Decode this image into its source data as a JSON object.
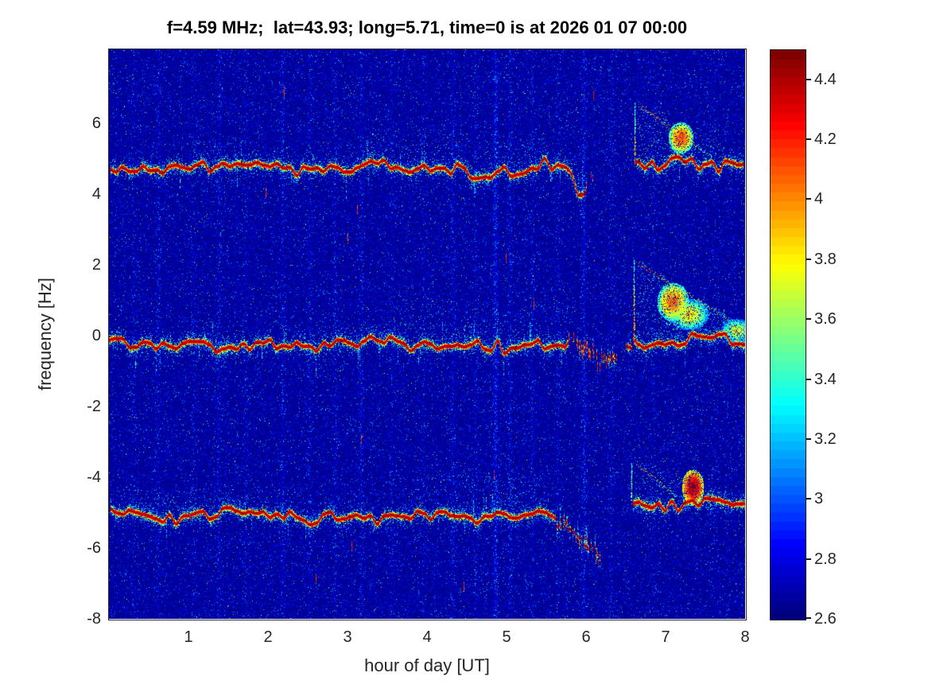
{
  "chart": {
    "title": "f=4.59 MHz;  lat=43.93; long=5.71, time=0 is at 2026 01 07 00:00",
    "xlabel": "hour of day [UT]",
    "ylabel": "frequency [Hz]"
  },
  "chart_data": {
    "type": "heatmap",
    "subtype": "doppler-spectrogram",
    "title": "f=4.59 MHz;  lat=43.93; long=5.71, time=0 is at 2026 01 07 00:00",
    "xlabel": "hour of day [UT]",
    "ylabel": "frequency [Hz]",
    "xlim": [
      0,
      8
    ],
    "ylim": [
      -8,
      8.1
    ],
    "xticks": [
      1,
      2,
      3,
      4,
      5,
      6,
      7,
      8
    ],
    "yticks": [
      -8,
      -6,
      -4,
      -2,
      0,
      2,
      4,
      6
    ],
    "grid": false,
    "colorbar": {
      "position": "right",
      "min": 2.6,
      "max": 4.5,
      "ticks": [
        2.6,
        2.8,
        3,
        3.2,
        3.4,
        3.6,
        3.8,
        4,
        4.2,
        4.4
      ],
      "colormap": "jet",
      "steps": 64
    },
    "noise": {
      "floor": 2.6,
      "seed": 20260107
    },
    "stripes": [
      {
        "t": 0.3,
        "s": 0.1
      },
      {
        "t": 0.62,
        "s": 0.16
      },
      {
        "t": 1.06,
        "s": 0.1
      },
      {
        "t": 1.38,
        "s": 0.18
      },
      {
        "t": 1.72,
        "s": 0.1
      },
      {
        "t": 2.18,
        "s": 0.2
      },
      {
        "t": 2.52,
        "s": 0.13
      },
      {
        "t": 2.84,
        "s": 0.16
      },
      {
        "t": 3.17,
        "s": 0.2
      },
      {
        "t": 3.55,
        "s": 0.12
      },
      {
        "t": 3.95,
        "s": 0.1
      },
      {
        "t": 4.33,
        "s": 0.16
      },
      {
        "t": 4.62,
        "s": 0.13
      },
      {
        "t": 4.87,
        "s": 0.45
      },
      {
        "t": 5.05,
        "s": 0.2
      },
      {
        "t": 5.33,
        "s": 0.13
      },
      {
        "t": 5.66,
        "s": 0.1
      },
      {
        "t": 5.98,
        "s": 0.3
      },
      {
        "t": 6.32,
        "s": 0.12
      },
      {
        "t": 6.85,
        "s": 0.08
      },
      {
        "t": 7.62,
        "s": 0.08
      }
    ],
    "marks": [
      {
        "t": 1.97,
        "f": 4.05
      },
      {
        "t": 3.0,
        "f": 2.75
      },
      {
        "t": 3.12,
        "f": 3.58
      },
      {
        "t": 2.2,
        "f": 6.9
      },
      {
        "t": 4.47,
        "f": -7.1
      },
      {
        "t": 3.17,
        "f": -2.9
      },
      {
        "t": 4.85,
        "f": -3.95
      },
      {
        "t": 6.1,
        "f": 6.8
      },
      {
        "t": 5.35,
        "f": 0.9
      },
      {
        "t": 3.05,
        "f": -5.95
      },
      {
        "t": 2.6,
        "f": -6.9
      },
      {
        "t": 5.0,
        "f": 2.2
      }
    ],
    "traces": [
      {
        "name": "upper-sideband",
        "center": 4.75,
        "wiggle_amp": 0.17,
        "segments": [
          {
            "t": [
              0.02,
              5.75
            ],
            "off": [
              0,
              0
            ]
          },
          {
            "t": [
              5.75,
              5.98
            ],
            "off": [
              0,
              -0.7
            ]
          },
          {
            "t": [
              5.98,
              6.14
            ],
            "off": [
              -0.7,
              -0.05
            ],
            "broken": true
          },
          {
            "t": [
              6.64,
              7.98
            ],
            "off": [
              0.15,
              0.05
            ]
          }
        ],
        "spike": {
          "t": 6.62,
          "from": 0.05,
          "to": 1.85,
          "strength": 0.75
        },
        "diag": {
          "t0": 6.68,
          "y0": 1.75,
          "t1": 7.6,
          "y1": 0.3
        },
        "cloud": {
          "t0": 6.66,
          "t1": 7.95,
          "ytop": 1.7,
          "density": 0.45
        },
        "blobs": [
          {
            "t": 7.2,
            "y": 0.85,
            "rx": 0.16,
            "ry": 0.45,
            "v": 3.9
          }
        ],
        "dust": [
          {
            "t0": 1.05,
            "t1": 1.62,
            "ymax": 0.6,
            "density": 0.5
          },
          {
            "t0": 2.0,
            "t1": 3.3,
            "ymax": 0.45,
            "density": 0.3
          },
          {
            "t0": 3.3,
            "t1": 5.5,
            "ymax": 1.05,
            "density": 0.55
          },
          {
            "t0": 5.5,
            "t1": 5.98,
            "ymax": 0.5,
            "density": 0.4
          },
          {
            "t0": 1.1,
            "t1": 1.6,
            "ymax": 0.5,
            "density": 0.3,
            "below": true
          }
        ]
      },
      {
        "name": "carrier",
        "center": -0.2,
        "wiggle_amp": 0.18,
        "segments": [
          {
            "t": [
              0.0,
              5.78
            ],
            "off": [
              0,
              0
            ]
          },
          {
            "t": [
              5.78,
              6.28
            ],
            "off": [
              0,
              -0.55
            ],
            "broken": true,
            "thick": true
          },
          {
            "t": [
              6.28,
              6.58
            ],
            "off": [
              -0.6,
              -0.15
            ],
            "broken": true
          },
          {
            "t": [
              6.62,
              8.0
            ],
            "off": [
              0.08,
              0.05
            ]
          }
        ],
        "spike": {
          "t": 6.61,
          "from": -0.05,
          "to": 2.35,
          "strength": 1.0
        },
        "diag": {
          "t0": 6.66,
          "y0": 2.25,
          "t1": 8.0,
          "y1": 0.4
        },
        "cloud": {
          "t0": 6.64,
          "t1": 8.0,
          "ytop": 2.2,
          "density": 0.6
        },
        "blobs": [
          {
            "t": 7.1,
            "y": 1.15,
            "rx": 0.2,
            "ry": 0.55,
            "v": 3.85
          },
          {
            "t": 7.3,
            "y": 0.8,
            "rx": 0.25,
            "ry": 0.45,
            "v": 3.6
          },
          {
            "t": 7.9,
            "y": 0.35,
            "rx": 0.2,
            "ry": 0.35,
            "v": 3.5
          }
        ],
        "dust": [
          {
            "t0": 0.9,
            "t1": 1.5,
            "ymax": 0.55,
            "density": 0.45
          },
          {
            "t0": 3.6,
            "t1": 5.8,
            "ymax": 1.25,
            "density": 0.5
          },
          {
            "t0": 2.2,
            "t1": 3.6,
            "ymax": 0.5,
            "density": 0.25
          },
          {
            "t0": 0.0,
            "t1": 0.6,
            "ymax": 0.5,
            "density": 0.4,
            "below": true
          },
          {
            "t0": 1.1,
            "t1": 1.5,
            "ymax": 0.6,
            "density": 0.5,
            "below": true
          }
        ]
      },
      {
        "name": "lower-sideband",
        "center": -5.1,
        "wiggle_amp": 0.15,
        "segments": [
          {
            "t": [
              0.02,
              5.62
            ],
            "off": [
              0,
              0
            ]
          },
          {
            "t": [
              5.62,
              6.18
            ],
            "off": [
              0,
              -1.0
            ],
            "broken": true
          },
          {
            "t": [
              6.6,
              8.0
            ],
            "off": [
              0.4,
              0.32
            ]
          }
        ],
        "spike": {
          "t": 6.58,
          "from": 0.35,
          "to": 1.5,
          "strength": 0.45
        },
        "diag": {
          "t0": 6.64,
          "y0": 1.45,
          "t1": 7.15,
          "y1": 0.55
        },
        "cloud": {
          "t0": 6.62,
          "t1": 7.9,
          "ytop": 1.55,
          "density": 0.4
        },
        "blobs": [
          {
            "t": 7.35,
            "y": 0.8,
            "rx": 0.14,
            "ry": 0.5,
            "v": 4.2
          }
        ],
        "dust": [
          {
            "t0": 0.15,
            "t1": 1.1,
            "ymax": 0.7,
            "density": 0.5
          },
          {
            "t0": 1.1,
            "t1": 3.4,
            "ymax": 0.6,
            "density": 0.45
          },
          {
            "t0": 3.8,
            "t1": 5.45,
            "ymax": 1.1,
            "density": 0.6
          },
          {
            "t0": 4.3,
            "t1": 5.2,
            "ymax": 1.4,
            "density": 0.3
          },
          {
            "t0": 2.9,
            "t1": 3.5,
            "ymax": 0.5,
            "density": 0.3,
            "below": true
          }
        ]
      }
    ]
  }
}
